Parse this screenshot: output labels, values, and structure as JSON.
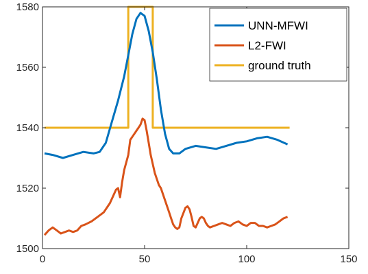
{
  "chart_data": {
    "type": "line",
    "title": "",
    "xlabel": "",
    "ylabel": "",
    "xlim": [
      0,
      150
    ],
    "ylim": [
      1500,
      1580
    ],
    "xticks": [
      0,
      50,
      100,
      150
    ],
    "yticks": [
      1500,
      1520,
      1540,
      1560,
      1580
    ],
    "xtick_labels": [
      "0",
      "50",
      "100",
      "150"
    ],
    "ytick_labels": [
      "1500",
      "1520",
      "1540",
      "1560",
      "1580"
    ],
    "grid": false,
    "legend_position": "top-right",
    "series": [
      {
        "name": "UNN-MFWI",
        "color": "#0072BD",
        "x": [
          1,
          5,
          10,
          15,
          20,
          25,
          28,
          31,
          34,
          37,
          40,
          42,
          44,
          46,
          48,
          50,
          52,
          54,
          56,
          58,
          60,
          62,
          64,
          67,
          70,
          75,
          80,
          85,
          90,
          95,
          100,
          105,
          110,
          115,
          120
        ],
        "y": [
          1531.5,
          1531,
          1530,
          1531,
          1532,
          1531.5,
          1532,
          1535,
          1542,
          1549,
          1557,
          1564,
          1571,
          1576,
          1578,
          1577,
          1572,
          1565,
          1556,
          1546,
          1538,
          1533,
          1531.5,
          1531.5,
          1533,
          1534,
          1533.5,
          1533,
          1534,
          1535,
          1535.5,
          1536.5,
          1537,
          1536,
          1534.5
        ]
      },
      {
        "name": "L2-FWI",
        "color": "#D95319",
        "x": [
          1,
          3,
          5,
          7,
          9,
          11,
          13,
          15,
          17,
          19,
          21,
          24,
          27,
          30,
          33,
          36,
          37,
          38,
          39,
          40,
          42,
          43,
          44,
          45,
          46,
          47,
          48,
          49,
          50,
          51,
          52,
          53,
          54,
          55,
          56,
          57,
          58,
          60,
          62,
          63,
          64,
          65,
          66,
          67,
          68,
          70,
          71,
          72,
          73,
          74,
          75,
          76,
          77,
          78,
          79,
          80,
          81,
          82,
          84,
          86,
          88,
          90,
          92,
          94,
          96,
          98,
          100,
          102,
          104,
          106,
          108,
          110,
          112,
          114,
          116,
          118,
          120
        ],
        "y": [
          1504.5,
          1506,
          1507,
          1506,
          1505,
          1505.5,
          1506,
          1505.5,
          1506,
          1507.5,
          1508,
          1509,
          1510.5,
          1512,
          1515,
          1519.5,
          1520,
          1517,
          1522,
          1526,
          1531,
          1536,
          1537,
          1538,
          1539,
          1540,
          1541,
          1543,
          1542.5,
          1539,
          1535,
          1531,
          1528,
          1525,
          1523,
          1521,
          1520,
          1516,
          1512,
          1510,
          1508,
          1507,
          1506.5,
          1507,
          1510,
          1513.5,
          1514,
          1513,
          1510.5,
          1507.5,
          1507,
          1508.5,
          1510,
          1510.5,
          1510,
          1508.5,
          1507.5,
          1507,
          1507.5,
          1508,
          1508.5,
          1508,
          1507.5,
          1508.5,
          1509,
          1508,
          1507.5,
          1508.5,
          1508.5,
          1507.5,
          1507.5,
          1507,
          1507.5,
          1508,
          1509,
          1510,
          1510.5
        ]
      },
      {
        "name": "ground truth",
        "color": "#EDB120",
        "x": [
          1,
          42,
          42,
          54,
          54,
          121
        ],
        "y": [
          1540,
          1540,
          1580,
          1580,
          1540,
          1540
        ]
      }
    ]
  }
}
